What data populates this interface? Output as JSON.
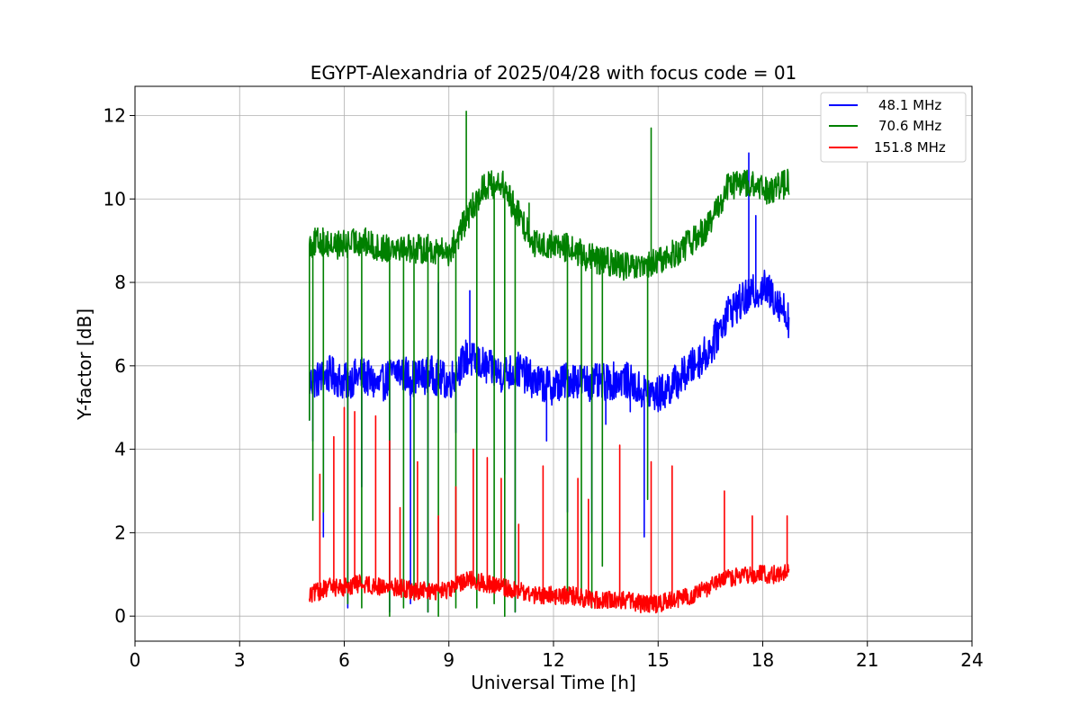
{
  "chart_data": {
    "type": "line",
    "title": "EGYPT-Alexandria of 2025/04/28 with focus code = 01",
    "xlabel": "Universal Time [h]",
    "ylabel": "Y-factor [dB]",
    "xlim": [
      0,
      24
    ],
    "ylim": [
      -0.6,
      12.7
    ],
    "xticks": [
      0,
      3,
      6,
      9,
      12,
      15,
      18,
      21,
      24
    ],
    "yticks": [
      0,
      2,
      4,
      6,
      8,
      10,
      12
    ],
    "xtick_labels": [
      "0",
      "3",
      "6",
      "9",
      "12",
      "15",
      "18",
      "21",
      "24"
    ],
    "ytick_labels": [
      "0",
      "2",
      "4",
      "6",
      "8",
      "10",
      "12"
    ],
    "grid": true,
    "legend_position": "top-right",
    "series": [
      {
        "name": "48.1 MHz",
        "color": "#0000ff",
        "x": [
          5.0,
          5.3,
          5.6,
          6.0,
          6.5,
          7.0,
          7.5,
          8.0,
          8.5,
          9.0,
          9.5,
          10.0,
          10.5,
          11.0,
          11.5,
          12.0,
          12.5,
          13.0,
          13.5,
          14.0,
          14.5,
          15.0,
          15.5,
          16.0,
          16.5,
          17.0,
          17.5,
          18.0,
          18.5,
          18.75
        ],
        "y": [
          5.6,
          5.7,
          5.8,
          5.6,
          5.8,
          5.5,
          5.9,
          5.7,
          5.8,
          5.6,
          6.2,
          6.0,
          5.8,
          5.9,
          5.6,
          5.5,
          5.7,
          5.6,
          5.6,
          5.7,
          5.4,
          5.3,
          5.6,
          6.0,
          6.4,
          7.3,
          7.6,
          7.9,
          7.5,
          7.1
        ],
        "spikes": [
          [
            5.0,
            4.7
          ],
          [
            5.1,
            4.2
          ],
          [
            5.4,
            1.9
          ],
          [
            6.1,
            0.2
          ],
          [
            6.5,
            3.1
          ],
          [
            7.3,
            0.1
          ],
          [
            7.9,
            0.3
          ],
          [
            8.4,
            0.1
          ],
          [
            8.7,
            8.0
          ],
          [
            9.2,
            4.4
          ],
          [
            9.6,
            7.8
          ],
          [
            10.6,
            3.4
          ],
          [
            10.9,
            0.1
          ],
          [
            11.8,
            4.2
          ],
          [
            12.4,
            2.5
          ],
          [
            13.1,
            2.0
          ],
          [
            13.5,
            4.6
          ],
          [
            14.2,
            4.9
          ],
          [
            14.6,
            1.9
          ],
          [
            15.2,
            5.0
          ],
          [
            17.6,
            11.1
          ],
          [
            17.8,
            9.6
          ]
        ]
      },
      {
        "name": "70.6 MHz",
        "color": "#008000",
        "x": [
          5.0,
          5.3,
          5.6,
          6.0,
          6.5,
          7.0,
          7.5,
          8.0,
          8.5,
          9.0,
          9.5,
          10.0,
          10.5,
          11.0,
          11.5,
          12.0,
          12.5,
          13.0,
          13.5,
          14.0,
          14.5,
          15.0,
          15.5,
          16.0,
          16.5,
          17.0,
          17.5,
          18.0,
          18.5,
          18.75
        ],
        "y": [
          8.9,
          9.0,
          8.9,
          8.9,
          9.0,
          8.8,
          8.9,
          8.8,
          8.8,
          8.7,
          9.5,
          10.3,
          10.4,
          9.6,
          8.9,
          8.9,
          8.8,
          8.6,
          8.5,
          8.4,
          8.3,
          8.5,
          8.7,
          9.0,
          9.4,
          10.3,
          10.4,
          10.2,
          10.3,
          10.4
        ],
        "spikes": [
          [
            5.0,
            4.7
          ],
          [
            5.1,
            2.3
          ],
          [
            5.4,
            2.5
          ],
          [
            6.1,
            0.3
          ],
          [
            6.5,
            0.2
          ],
          [
            7.3,
            0.0
          ],
          [
            7.7,
            0.2
          ],
          [
            8.0,
            0.4
          ],
          [
            8.4,
            0.1
          ],
          [
            8.7,
            0.0
          ],
          [
            9.2,
            0.2
          ],
          [
            9.5,
            12.1
          ],
          [
            9.8,
            0.2
          ],
          [
            10.3,
            0.3
          ],
          [
            10.6,
            0.0
          ],
          [
            10.9,
            0.1
          ],
          [
            11.3,
            9.9
          ],
          [
            12.4,
            0.5
          ],
          [
            12.8,
            0.4
          ],
          [
            13.1,
            0.2
          ],
          [
            13.4,
            1.2
          ],
          [
            14.8,
            11.7
          ],
          [
            14.7,
            2.8
          ]
        ]
      },
      {
        "name": "151.8 MHz",
        "color": "#ff0000",
        "x": [
          5.0,
          5.3,
          5.6,
          6.0,
          6.5,
          7.0,
          7.5,
          8.0,
          8.5,
          9.0,
          9.5,
          10.0,
          10.5,
          11.0,
          11.5,
          12.0,
          12.5,
          13.0,
          13.5,
          14.0,
          14.5,
          15.0,
          15.5,
          16.0,
          16.5,
          17.0,
          17.5,
          18.0,
          18.5,
          18.75
        ],
        "y": [
          0.5,
          0.6,
          0.7,
          0.7,
          0.8,
          0.7,
          0.7,
          0.6,
          0.6,
          0.6,
          0.9,
          0.8,
          0.7,
          0.6,
          0.5,
          0.5,
          0.5,
          0.4,
          0.4,
          0.4,
          0.3,
          0.3,
          0.4,
          0.5,
          0.7,
          0.9,
          1.0,
          1.0,
          1.0,
          1.1
        ],
        "spikes": [
          [
            5.3,
            3.4
          ],
          [
            5.7,
            4.3
          ],
          [
            6.0,
            5.0
          ],
          [
            6.3,
            4.9
          ],
          [
            6.9,
            4.8
          ],
          [
            7.3,
            4.2
          ],
          [
            7.6,
            2.6
          ],
          [
            8.1,
            3.7
          ],
          [
            8.7,
            2.4
          ],
          [
            9.2,
            3.1
          ],
          [
            9.7,
            4.0
          ],
          [
            10.1,
            3.8
          ],
          [
            10.5,
            3.3
          ],
          [
            11.0,
            2.2
          ],
          [
            11.7,
            3.6
          ],
          [
            12.7,
            3.3
          ],
          [
            13.0,
            2.8
          ],
          [
            13.9,
            4.1
          ],
          [
            14.8,
            3.7
          ],
          [
            15.4,
            3.6
          ],
          [
            16.9,
            3.0
          ],
          [
            17.7,
            2.4
          ],
          [
            18.7,
            2.4
          ]
        ]
      }
    ]
  }
}
